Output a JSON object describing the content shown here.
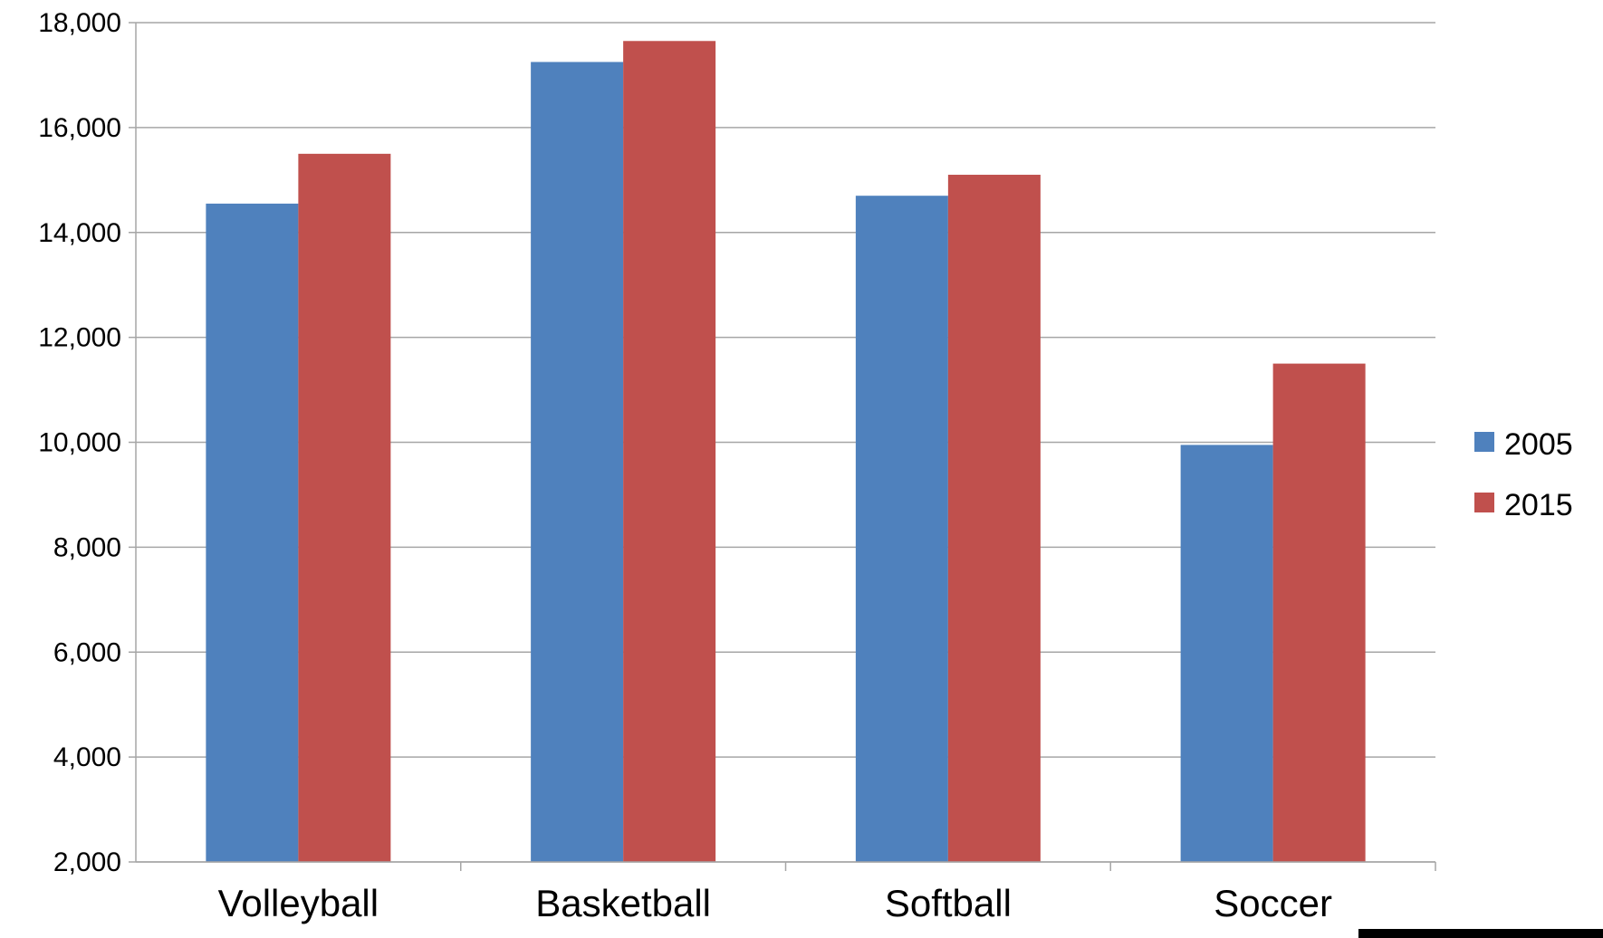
{
  "chart_data": {
    "type": "bar",
    "categories": [
      "Volleyball",
      "Basketball",
      "Softball",
      "Soccer"
    ],
    "series": [
      {
        "name": "2005",
        "values": [
          14550,
          17250,
          14700,
          9950
        ],
        "color": "#4F81BD"
      },
      {
        "name": "2015",
        "values": [
          15500,
          17650,
          15100,
          11500
        ],
        "color": "#C0504D"
      }
    ],
    "ylim": [
      2000,
      18000
    ],
    "yticks": [
      2000,
      4000,
      6000,
      8000,
      10000,
      12000,
      14000,
      16000,
      18000
    ],
    "ytick_labels": [
      "2,000",
      "4,000",
      "6,000",
      "8,000",
      "10,000",
      "12,000",
      "14,000",
      "16,000",
      "18,000"
    ],
    "grid": true,
    "gridline_color": "#A6A6A6",
    "legend_position": "right",
    "title": "",
    "xlabel": "",
    "ylabel": ""
  }
}
